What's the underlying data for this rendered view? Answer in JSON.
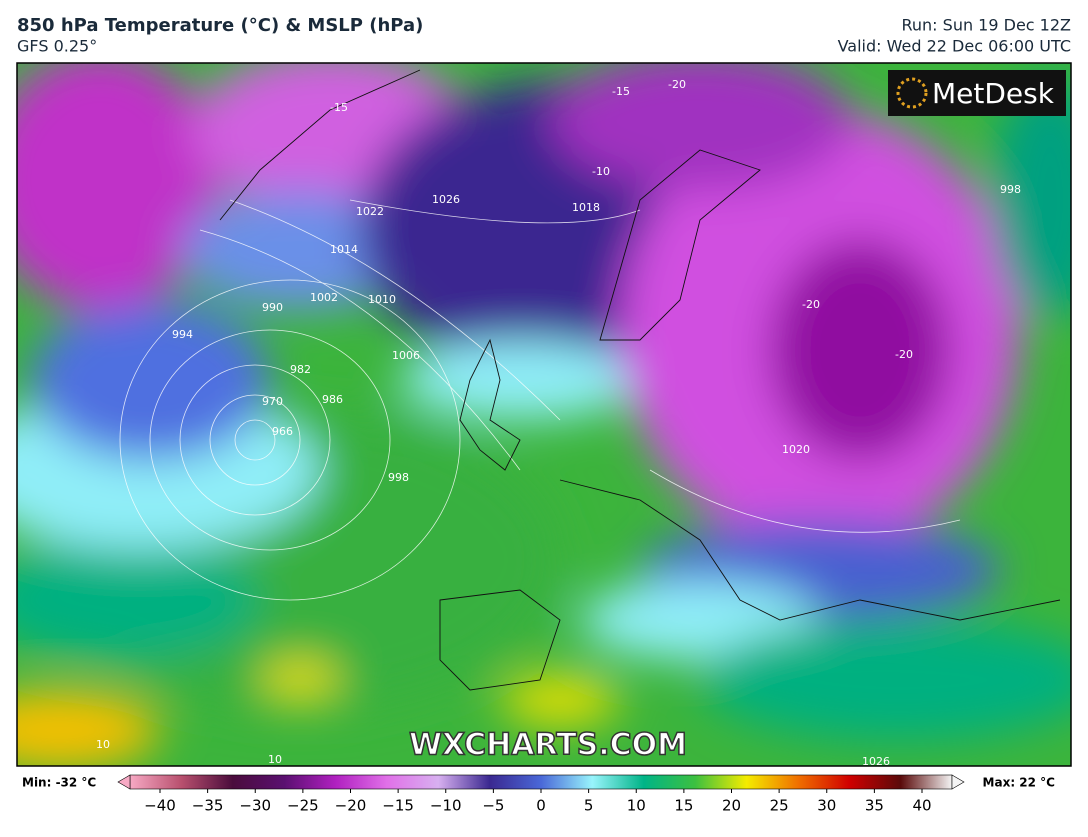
{
  "header": {
    "title": "850 hPa Temperature (°C) & MSLP (hPa)",
    "subtitle": "GFS 0.25°",
    "run": "Run: Sun 19 Dec 12Z",
    "valid": "Valid: Wed 22 Dec 06:00 UTC"
  },
  "map": {
    "logo": "MetDesk",
    "watermark": "WXCHARTS.COM",
    "labels": [
      "1014",
      "1002",
      "990",
      "982",
      "970",
      "966",
      "986",
      "1006",
      "1010",
      "998",
      "1018",
      "1022",
      "1026",
      "994",
      "-20",
      "-15",
      "-10",
      "-20",
      "-20",
      "10",
      "10",
      "1026",
      "1020",
      "998",
      "-15"
    ]
  },
  "colorbar": {
    "min_label": "Min: -32 °C",
    "max_label": "Max: 22 °C",
    "range": [
      -40,
      40
    ],
    "colors": [
      "#f7a9c4",
      "#b8506e",
      "#4a0c3c",
      "#5a1070",
      "#b020c0",
      "#e070e8",
      "#d8b0f0",
      "#3a2890",
      "#4a68d8",
      "#98f4fc",
      "#00b487",
      "#3cc040",
      "#f4ec00",
      "#f07000",
      "#d00000",
      "#5a0a0a",
      "#f4f4f4"
    ],
    "ticks": [
      {
        "value": -40,
        "label": "−40"
      },
      {
        "value": -35,
        "label": "−35"
      },
      {
        "value": -30,
        "label": "−30"
      },
      {
        "value": -25,
        "label": "−25"
      },
      {
        "value": -20,
        "label": "−20"
      },
      {
        "value": -15,
        "label": "−15"
      },
      {
        "value": -10,
        "label": "−10"
      },
      {
        "value": -5,
        "label": "−5"
      },
      0,
      5,
      10,
      15,
      20,
      25,
      30,
      35,
      40
    ]
  }
}
